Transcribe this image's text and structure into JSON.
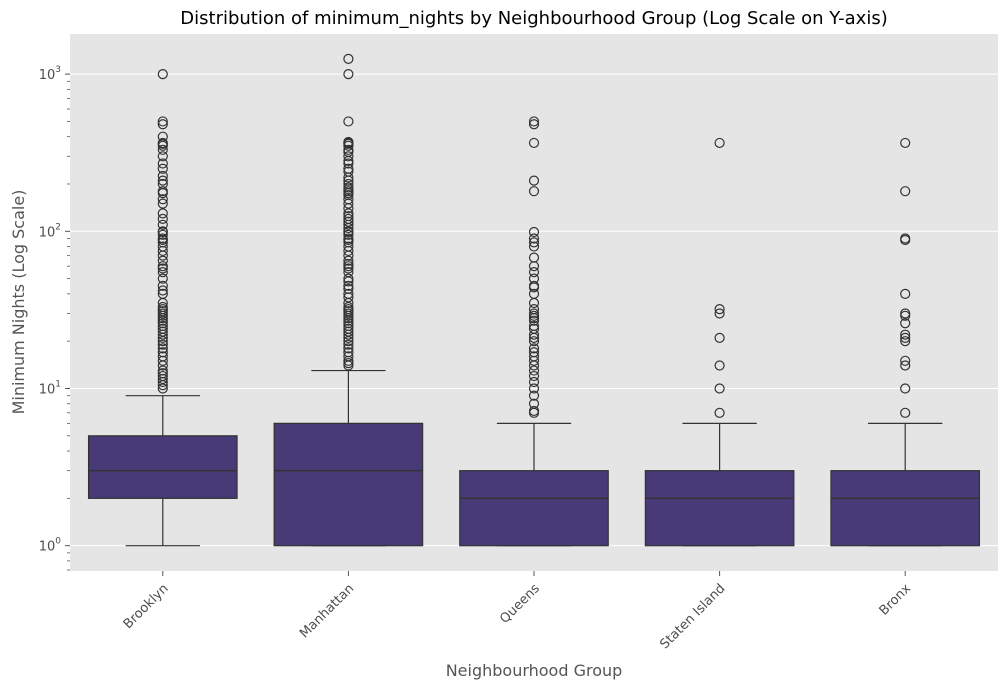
{
  "chart_data": {
    "type": "box",
    "title": "Distribution of minimum_nights by Neighbourhood Group (Log Scale on Y-axis)",
    "xlabel": "Neighbourhood Group",
    "ylabel": "Minimum Nights (Log Scale)",
    "yscale": "log",
    "ylim": [
      0.69,
      1800
    ],
    "yticks": [
      {
        "value": 1,
        "base": "10",
        "exp": "0"
      },
      {
        "value": 10,
        "base": "10",
        "exp": "1"
      },
      {
        "value": 100,
        "base": "10",
        "exp": "2"
      },
      {
        "value": 1000,
        "base": "10",
        "exp": "3"
      }
    ],
    "grid": true,
    "box_color": "#483a76",
    "categories": [
      "Brooklyn",
      "Manhattan",
      "Queens",
      "Staten Island",
      "Bronx"
    ],
    "boxes": [
      {
        "category": "Brooklyn",
        "whislo": 1,
        "q1": 2,
        "median": 3,
        "q3": 5,
        "whishi": 9,
        "fliers": [
          10,
          10.5,
          11,
          11.5,
          12,
          12.5,
          13,
          14,
          15,
          16,
          17,
          18,
          19,
          20,
          21,
          22,
          23,
          24,
          25,
          26,
          27,
          28,
          29,
          30,
          31,
          32,
          33,
          35,
          40,
          42,
          45,
          50,
          55,
          58,
          60,
          65,
          70,
          75,
          80,
          85,
          88,
          90,
          95,
          99,
          100,
          110,
          120,
          130,
          150,
          160,
          175,
          180,
          200,
          210,
          225,
          250,
          270,
          300,
          330,
          350,
          360,
          365,
          400,
          480,
          500,
          1000
        ]
      },
      {
        "category": "Manhattan",
        "whislo": 1,
        "q1": 1,
        "median": 3,
        "q3": 6,
        "whishi": 13,
        "fliers": [
          14,
          14.5,
          15,
          16,
          17,
          18,
          19,
          20,
          21,
          22,
          23,
          24,
          25,
          26,
          27,
          28,
          29,
          30,
          31,
          32,
          33,
          35,
          38,
          40,
          43,
          45,
          48,
          50,
          55,
          58,
          60,
          62,
          65,
          70,
          75,
          80,
          85,
          88,
          90,
          95,
          99,
          100,
          105,
          110,
          115,
          120,
          125,
          130,
          140,
          150,
          160,
          170,
          175,
          180,
          185,
          190,
          200,
          210,
          220,
          240,
          250,
          270,
          280,
          300,
          320,
          330,
          350,
          360,
          365,
          370,
          500,
          1000,
          1250
        ]
      },
      {
        "category": "Queens",
        "whislo": 1,
        "q1": 1,
        "median": 2,
        "q3": 3,
        "whishi": 6,
        "fliers": [
          7,
          7.2,
          8,
          9,
          10,
          11,
          12,
          13,
          14,
          15,
          16,
          17,
          18,
          20,
          21,
          22,
          24,
          25,
          27,
          28,
          29,
          30,
          32,
          35,
          40,
          44,
          45,
          50,
          55,
          60,
          68,
          80,
          85,
          90,
          99,
          180,
          210,
          365,
          480,
          500
        ]
      },
      {
        "category": "Staten Island",
        "whislo": 1,
        "q1": 1,
        "median": 2,
        "q3": 3,
        "whishi": 6,
        "fliers": [
          7,
          10,
          14,
          21,
          30,
          32,
          365
        ]
      },
      {
        "category": "Bronx",
        "whislo": 1,
        "q1": 1,
        "median": 2,
        "q3": 3,
        "whishi": 6,
        "fliers": [
          7,
          10,
          14,
          15,
          20,
          21,
          22,
          26,
          29,
          30,
          40,
          88,
          90,
          180,
          365
        ]
      }
    ]
  }
}
